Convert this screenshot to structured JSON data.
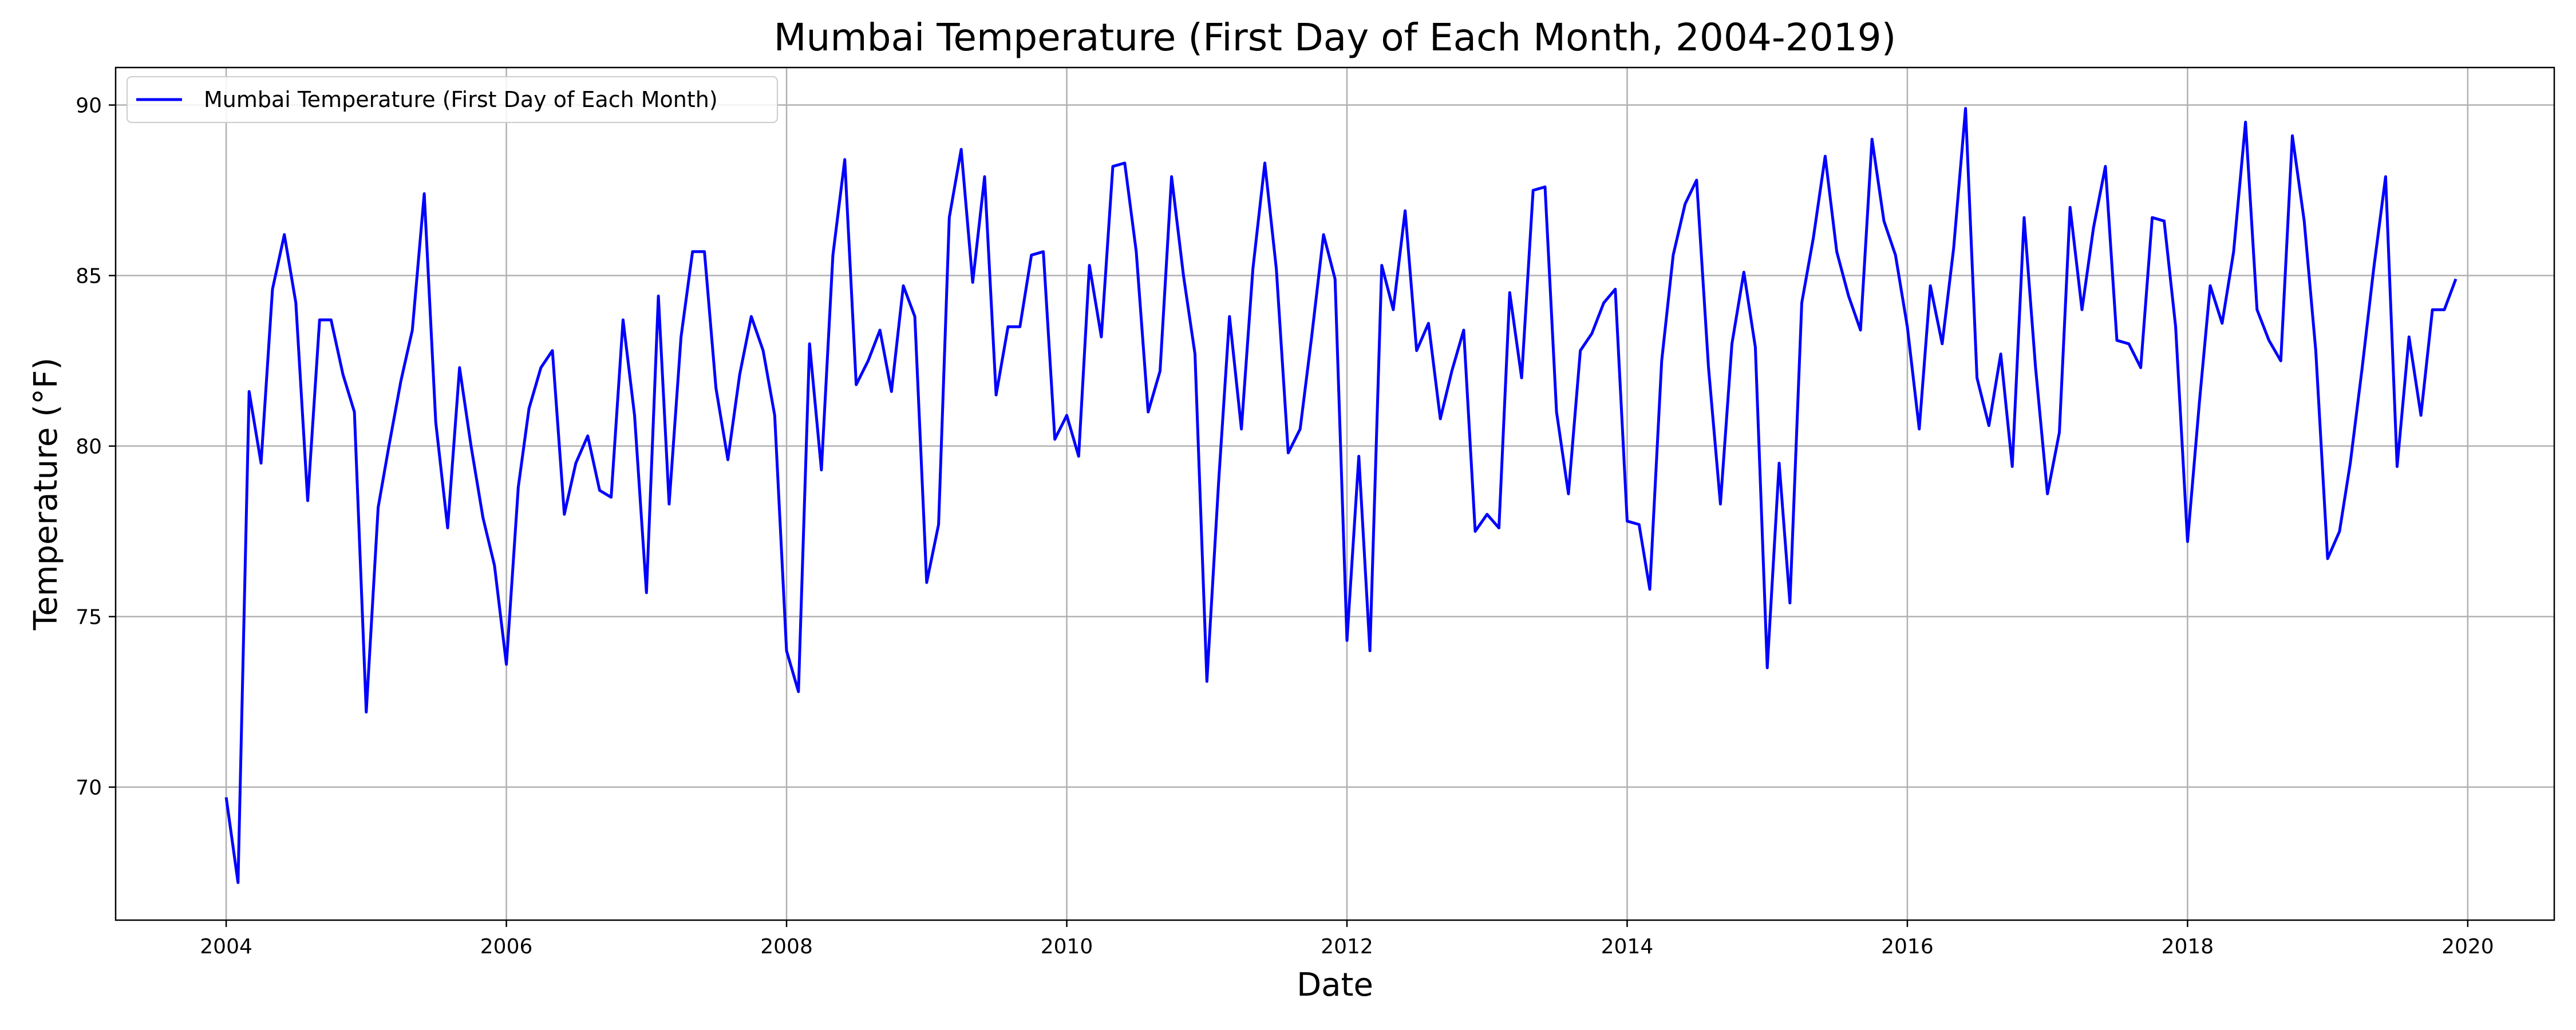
{
  "chart_data": {
    "type": "line",
    "title": "Mumbai Temperature (First Day of Each Month, 2004-2019)",
    "xlabel": "Date",
    "ylabel": "Temperature (°F)",
    "xlim": [
      "2003-03-19",
      "2020-08-14"
    ],
    "ylim": [
      66.1,
      91.1
    ],
    "x_ticks": [
      "2004",
      "2006",
      "2008",
      "2010",
      "2012",
      "2014",
      "2016",
      "2018",
      "2020"
    ],
    "y_ticks": [
      70,
      75,
      80,
      85,
      90
    ],
    "grid": true,
    "legend_position": "top-left",
    "line_color": "#0000ff",
    "series": [
      {
        "name": "Mumbai Temperature (First Day of Each Month)",
        "start": "2004-01",
        "frequency": "monthly",
        "values": [
          69.7,
          67.2,
          81.6,
          79.5,
          84.6,
          86.2,
          84.2,
          78.4,
          83.7,
          83.7,
          82.1,
          81.0,
          72.2,
          78.2,
          80.0,
          81.9,
          83.4,
          87.4,
          80.7,
          77.6,
          82.3,
          80.0,
          77.9,
          76.5,
          73.6,
          78.8,
          81.1,
          82.3,
          82.8,
          78.0,
          79.5,
          80.3,
          78.7,
          78.5,
          83.7,
          80.9,
          75.7,
          84.4,
          78.3,
          83.2,
          85.7,
          85.7,
          81.7,
          79.6,
          82.1,
          83.8,
          82.8,
          80.9,
          74.0,
          72.8,
          83.0,
          79.3,
          85.6,
          88.4,
          81.8,
          82.5,
          83.4,
          81.6,
          84.7,
          83.8,
          76.0,
          77.7,
          86.7,
          88.7,
          84.8,
          87.9,
          81.5,
          83.5,
          83.5,
          85.6,
          85.7,
          80.2,
          80.9,
          79.7,
          85.3,
          83.2,
          88.2,
          88.3,
          85.7,
          81.0,
          82.2,
          87.9,
          85.0,
          82.7,
          73.1,
          79.0,
          83.8,
          80.5,
          85.2,
          88.3,
          85.2,
          79.8,
          80.5,
          83.2,
          86.2,
          84.9,
          74.3,
          79.7,
          74.0,
          85.3,
          84.0,
          86.9,
          82.8,
          83.6,
          80.8,
          82.2,
          83.4,
          77.5,
          78.0,
          77.6,
          84.5,
          82.0,
          87.5,
          87.6,
          81.0,
          78.6,
          82.8,
          83.3,
          84.2,
          84.6,
          77.8,
          77.7,
          75.8,
          82.5,
          85.6,
          87.1,
          87.8,
          82.3,
          78.3,
          83.0,
          85.1,
          82.9,
          73.5,
          79.5,
          75.4,
          84.2,
          86.1,
          88.5,
          85.7,
          84.4,
          83.4,
          89.0,
          86.6,
          85.6,
          83.5,
          80.5,
          84.7,
          83.0,
          85.8,
          89.9,
          82.0,
          80.6,
          82.7,
          79.4,
          86.7,
          82.3,
          78.6,
          80.4,
          87.0,
          84.0,
          86.4,
          88.2,
          83.1,
          83.0,
          82.3,
          86.7,
          86.6,
          83.5,
          77.2,
          81.3,
          84.7,
          83.6,
          85.7,
          89.5,
          84.0,
          83.1,
          82.5,
          89.1,
          86.6,
          82.8,
          76.7,
          77.5,
          79.5,
          82.3,
          85.2,
          87.9,
          79.4,
          83.2,
          80.9,
          84.0,
          84.0,
          84.9
        ]
      }
    ]
  }
}
